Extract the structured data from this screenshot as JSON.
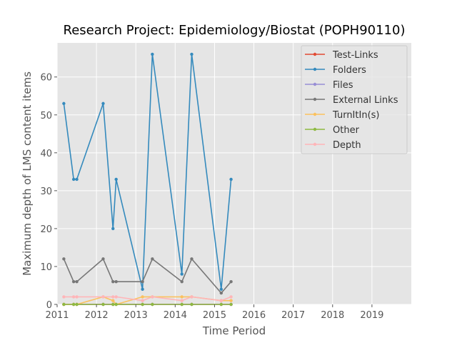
{
  "chart_data": {
    "type": "line",
    "title": "Research Project: Epidemiology/Biostat (POPH90110)",
    "xlabel": "Time Period",
    "ylabel": "Maximum depth of LMS content items",
    "xlim": [
      2011,
      2020
    ],
    "ylim": [
      0,
      69
    ],
    "xticks": [
      2011,
      2012,
      2013,
      2014,
      2015,
      2016,
      2017,
      2018,
      2019
    ],
    "yticks": [
      0,
      10,
      20,
      30,
      40,
      50,
      60
    ],
    "grid": true,
    "legend_position": "top-right",
    "x": [
      2011.17,
      2011.42,
      2011.5,
      2012.17,
      2012.42,
      2012.5,
      2013.17,
      2013.42,
      2014.17,
      2014.42,
      2015.17,
      2015.42
    ],
    "series": [
      {
        "name": "Test-Links",
        "color": "#E24A33",
        "values": [
          0,
          0,
          0,
          0,
          0,
          0,
          0,
          0,
          0,
          0,
          0,
          0
        ]
      },
      {
        "name": "Folders",
        "color": "#348ABD",
        "values": [
          53,
          33,
          33,
          53,
          20,
          33,
          4,
          66,
          8,
          66,
          4,
          33
        ]
      },
      {
        "name": "Files",
        "color": "#988ED5",
        "values": [
          0,
          0,
          0,
          0,
          0,
          0,
          0,
          0,
          0,
          0,
          0,
          0
        ]
      },
      {
        "name": "External Links",
        "color": "#777777",
        "values": [
          12,
          6,
          6,
          12,
          6,
          6,
          6,
          12,
          6,
          12,
          3,
          6
        ]
      },
      {
        "name": "TurnItIn(s)",
        "color": "#FBC15E",
        "values": [
          0,
          0,
          0,
          2,
          1,
          0,
          2,
          2,
          2,
          2,
          1,
          1
        ]
      },
      {
        "name": "Other",
        "color": "#8EBA42",
        "values": [
          0,
          0,
          0,
          0,
          0,
          0,
          0,
          0,
          0,
          0,
          0,
          0
        ]
      },
      {
        "name": "Depth",
        "color": "#FFB5B8",
        "values": [
          2,
          2,
          2,
          2,
          2,
          2,
          1,
          2,
          1,
          2,
          1,
          2
        ]
      }
    ]
  }
}
